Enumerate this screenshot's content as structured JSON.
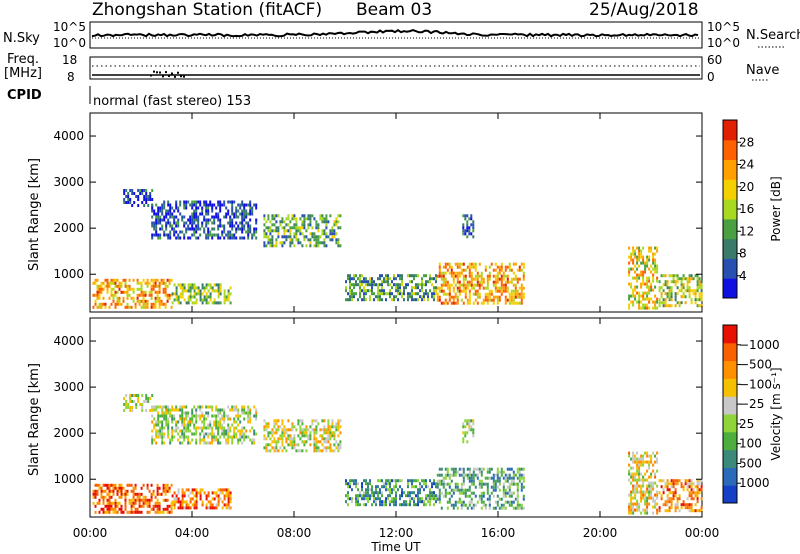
{
  "header": {
    "title": "Zhongshan Station (fitACF)",
    "beam": "Beam 03",
    "date": "25/Aug/2018",
    "mode": "normal (fast stereo) 153"
  },
  "labels": {
    "nsky": "N.Sky",
    "nsearch": "N.Search",
    "freq": "Freq.",
    "freq_unit": "[MHz]",
    "nave": "Nave",
    "cpid": "CPID",
    "left_hi": "10^5",
    "left_lo": "10^0",
    "right_hi": "10^5",
    "right_lo": "10^0",
    "freq_hi": "18",
    "freq_lo": "8",
    "nave_hi": "60",
    "nave_lo": "0"
  },
  "chart_data": [
    {
      "type": "heatmap",
      "panel": "power",
      "ylabel": "Slant Range [km]",
      "xlabel": "Time UT",
      "xticks": [
        "00:00",
        "04:00",
        "08:00",
        "12:00",
        "16:00",
        "20:00",
        "00:00"
      ],
      "yticks": [
        1000,
        2000,
        3000,
        4000
      ],
      "ylim": [
        180,
        4500
      ],
      "xlim_hours": [
        0,
        24
      ],
      "colorbar": {
        "label": "Power [dB]",
        "ticks": [
          "4",
          "8",
          "12",
          "16",
          "20",
          "24",
          "28"
        ],
        "colors": [
          "#1010e0",
          "#2850b0",
          "#3a7a6a",
          "#4aa040",
          "#a8d820",
          "#f5d000",
          "#ffa000",
          "#ff6000",
          "#e02000"
        ]
      },
      "echo_regions": [
        {
          "t0": 0.1,
          "t1": 3.2,
          "r0": 300,
          "r1": 900,
          "level": 0.7
        },
        {
          "t0": 3.2,
          "t1": 5.5,
          "r0": 350,
          "r1": 800,
          "level": 0.45
        },
        {
          "t0": 1.3,
          "t1": 2.4,
          "r0": 2500,
          "r1": 2850,
          "level": 0.15
        },
        {
          "t0": 2.4,
          "t1": 6.5,
          "r0": 1800,
          "r1": 2600,
          "level": 0.15
        },
        {
          "t0": 6.8,
          "t1": 9.8,
          "r0": 1600,
          "r1": 2300,
          "level": 0.35
        },
        {
          "t0": 10.0,
          "t1": 13.6,
          "r0": 450,
          "r1": 1000,
          "level": 0.35
        },
        {
          "t0": 13.6,
          "t1": 17.0,
          "r0": 400,
          "r1": 1250,
          "level": 0.7
        },
        {
          "t0": 14.6,
          "t1": 15.0,
          "r0": 1800,
          "r1": 2300,
          "level": 0.2
        },
        {
          "t0": 21.1,
          "t1": 22.2,
          "r0": 250,
          "r1": 1600,
          "level": 0.6
        },
        {
          "t0": 22.3,
          "t1": 24.0,
          "r0": 300,
          "r1": 1000,
          "level": 0.5
        }
      ]
    },
    {
      "type": "heatmap",
      "panel": "velocity",
      "ylabel": "Slant Range [km]",
      "xlabel": "Time UT",
      "xticks": [
        "00:00",
        "04:00",
        "08:00",
        "12:00",
        "16:00",
        "20:00",
        "00:00"
      ],
      "yticks": [
        1000,
        2000,
        3000,
        4000
      ],
      "ylim": [
        180,
        4500
      ],
      "xlim_hours": [
        0,
        24
      ],
      "colorbar": {
        "label": "Velocity [m s⁻¹]",
        "ticks": [
          "1000",
          "500",
          "100",
          "25",
          "−25",
          "−100",
          "−500",
          "−1000"
        ],
        "colors": [
          "#1440c8",
          "#2a6ab8",
          "#3a8a7a",
          "#4cae3c",
          "#8ed43a",
          "#c8c8c8",
          "#f5c000",
          "#ff9000",
          "#f86000",
          "#e81000"
        ]
      },
      "echo_regions": [
        {
          "t0": 0.1,
          "t1": 3.2,
          "r0": 300,
          "r1": 900,
          "level": 0.85
        },
        {
          "t0": 3.2,
          "t1": 5.5,
          "r0": 350,
          "r1": 800,
          "level": 0.8
        },
        {
          "t0": 1.3,
          "t1": 2.4,
          "r0": 2500,
          "r1": 2850,
          "level": 0.5
        },
        {
          "t0": 2.4,
          "t1": 6.5,
          "r0": 1800,
          "r1": 2600,
          "level": 0.5
        },
        {
          "t0": 6.8,
          "t1": 9.8,
          "r0": 1600,
          "r1": 2300,
          "level": 0.55
        },
        {
          "t0": 10.0,
          "t1": 13.6,
          "r0": 450,
          "r1": 1000,
          "level": 0.3
        },
        {
          "t0": 13.6,
          "t1": 17.0,
          "r0": 400,
          "r1": 1250,
          "level": 0.35
        },
        {
          "t0": 14.6,
          "t1": 15.0,
          "r0": 1800,
          "r1": 2300,
          "level": 0.45
        },
        {
          "t0": 21.1,
          "t1": 22.2,
          "r0": 250,
          "r1": 1600,
          "level": 0.6
        },
        {
          "t0": 22.3,
          "t1": 24.0,
          "r0": 300,
          "r1": 1000,
          "level": 0.75
        }
      ]
    }
  ]
}
